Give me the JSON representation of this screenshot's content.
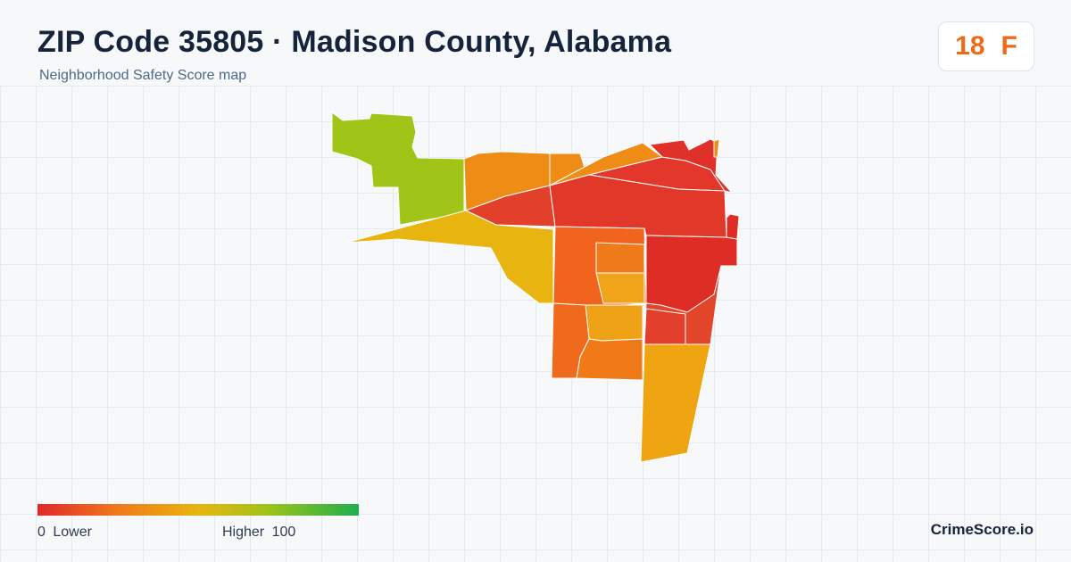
{
  "header": {
    "title": "ZIP Code 35805 · Madison County, Alabama",
    "subtitle": "Neighborhood Safety Score map"
  },
  "grade": {
    "score": "18",
    "letter": "F",
    "color": "#ec6a1a"
  },
  "legend": {
    "low_text": "0 Lower",
    "high_text": "Higher 100",
    "colors": [
      "#e0292a",
      "#ef7a1a",
      "#e8b510",
      "#9cc31a",
      "#1fae4d"
    ]
  },
  "brand": "CrimeScore.io",
  "map_regions": [
    {
      "name": "region-northwest",
      "color": "#a1c418"
    },
    {
      "name": "region-north-1",
      "color": "#ef8c16"
    },
    {
      "name": "region-north-2",
      "color": "#ef8c16"
    },
    {
      "name": "region-northeast-strip",
      "color": "#ef8c16"
    },
    {
      "name": "region-west-wedge",
      "color": "#e8b410"
    },
    {
      "name": "region-northeast-1",
      "color": "#e2372a"
    },
    {
      "name": "region-northeast-2",
      "color": "#e0302a"
    },
    {
      "name": "region-center-west",
      "color": "#e2402a"
    },
    {
      "name": "region-center-north",
      "color": "#e2382a"
    },
    {
      "name": "region-east",
      "color": "#de2d25"
    },
    {
      "name": "region-east-edge",
      "color": "#de2d25"
    },
    {
      "name": "region-middle",
      "color": "#f0641e"
    },
    {
      "name": "region-middle-a",
      "color": "#ef7a1a"
    },
    {
      "name": "region-middle-b",
      "color": "#efa41a"
    },
    {
      "name": "region-southeast-1",
      "color": "#e2452a"
    },
    {
      "name": "region-southeast-2",
      "color": "#e2402a"
    },
    {
      "name": "region-south-center",
      "color": "#efa218"
    },
    {
      "name": "region-south-west",
      "color": "#f06a1e"
    },
    {
      "name": "region-south",
      "color": "#f07a18"
    },
    {
      "name": "region-far-south",
      "color": "#efa412"
    }
  ]
}
